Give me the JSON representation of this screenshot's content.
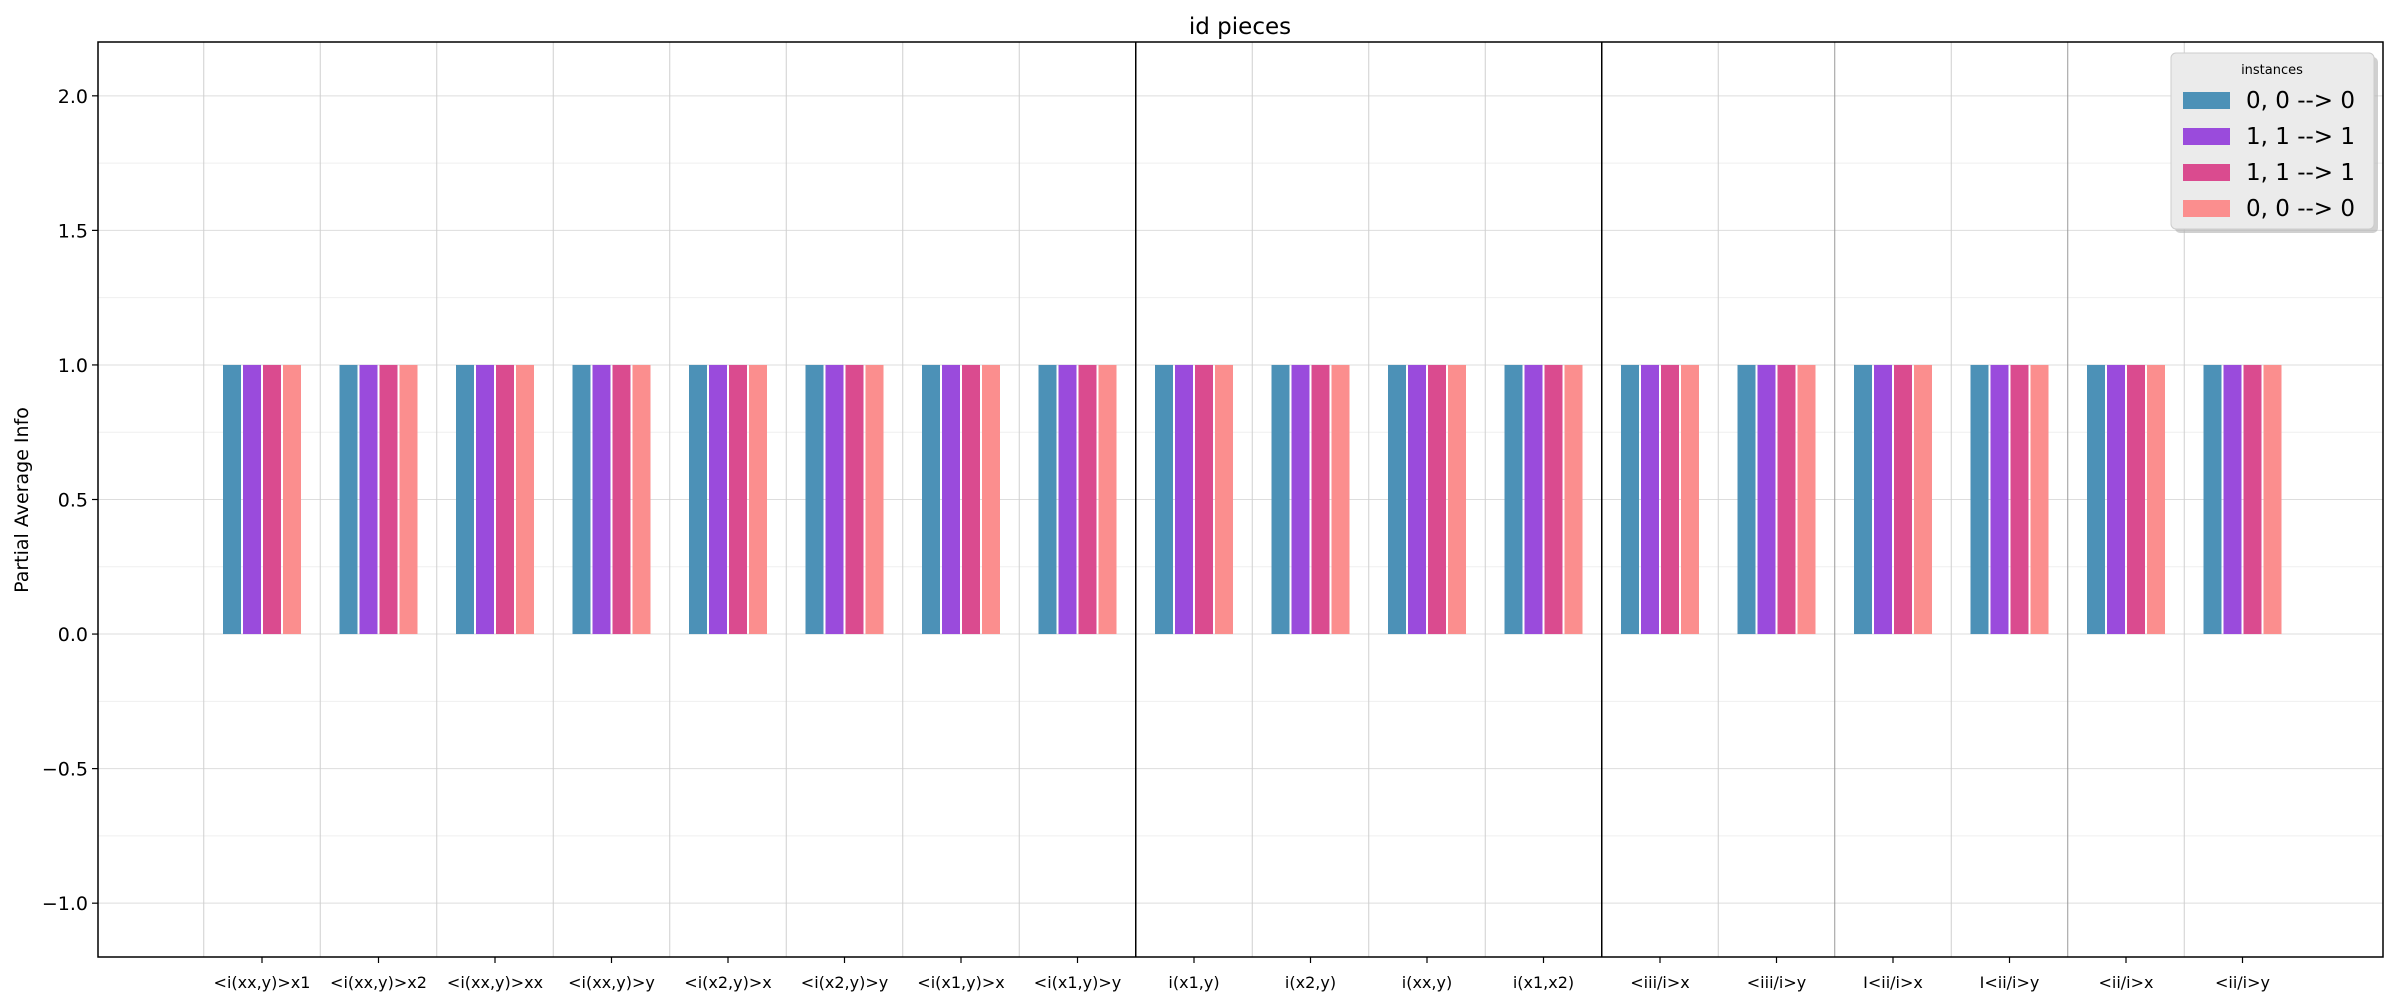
{
  "chart_data": {
    "type": "bar",
    "title": "id pieces",
    "xlabel": "",
    "ylabel": "Partial Average Info",
    "ylim": [
      -1.2,
      2.2
    ],
    "yticks": [
      -1.0,
      -0.5,
      0.0,
      0.5,
      1.0,
      1.5,
      2.0
    ],
    "ytick_labels": [
      "−1.0",
      "−0.5",
      "0.0",
      "0.5",
      "1.0",
      "1.5",
      "2.0"
    ],
    "grid": true,
    "legend_position": "top-right",
    "legend_title": "instances",
    "categories": [
      "<i(xx,y)>x1",
      "<i(xx,y)>x2",
      "<i(xx,y)>xx",
      "<i(xx,y)>y",
      "<i(x2,y)>x",
      "<i(x2,y)>y",
      "<i(x1,y)>x",
      "<i(x1,y)>y",
      "i(x1,y)",
      "i(x2,y)",
      "i(xx,y)",
      "i(x1,x2)",
      "<iii/i>x",
      "<iii/i>y",
      "I<ii/i>x",
      "I<ii/i>y",
      "<ii/i>x",
      "<ii/i>y"
    ],
    "group_separators": [
      {
        "after_index": 7,
        "style": "strong"
      },
      {
        "after_index": 11,
        "style": "strong"
      },
      {
        "after_index": 13,
        "style": "medium"
      },
      {
        "after_index": 15,
        "style": "medium"
      }
    ],
    "series": [
      {
        "name": "0, 0 --> 0",
        "color": "#4c91b7",
        "values": [
          1,
          1,
          1,
          1,
          1,
          1,
          1,
          1,
          1,
          1,
          1,
          1,
          1,
          1,
          1,
          1,
          1,
          1
        ]
      },
      {
        "name": "1, 1 --> 1",
        "color": "#9a4bdc",
        "values": [
          1,
          1,
          1,
          1,
          1,
          1,
          1,
          1,
          1,
          1,
          1,
          1,
          1,
          1,
          1,
          1,
          1,
          1
        ]
      },
      {
        "name": "1, 1 --> 1",
        "color": "#da4b8f",
        "values": [
          1,
          1,
          1,
          1,
          1,
          1,
          1,
          1,
          1,
          1,
          1,
          1,
          1,
          1,
          1,
          1,
          1,
          1
        ]
      },
      {
        "name": "0, 0 --> 0",
        "color": "#fb8e8e",
        "values": [
          1,
          1,
          1,
          1,
          1,
          1,
          1,
          1,
          1,
          1,
          1,
          1,
          1,
          1,
          1,
          1,
          1,
          1
        ]
      }
    ]
  }
}
